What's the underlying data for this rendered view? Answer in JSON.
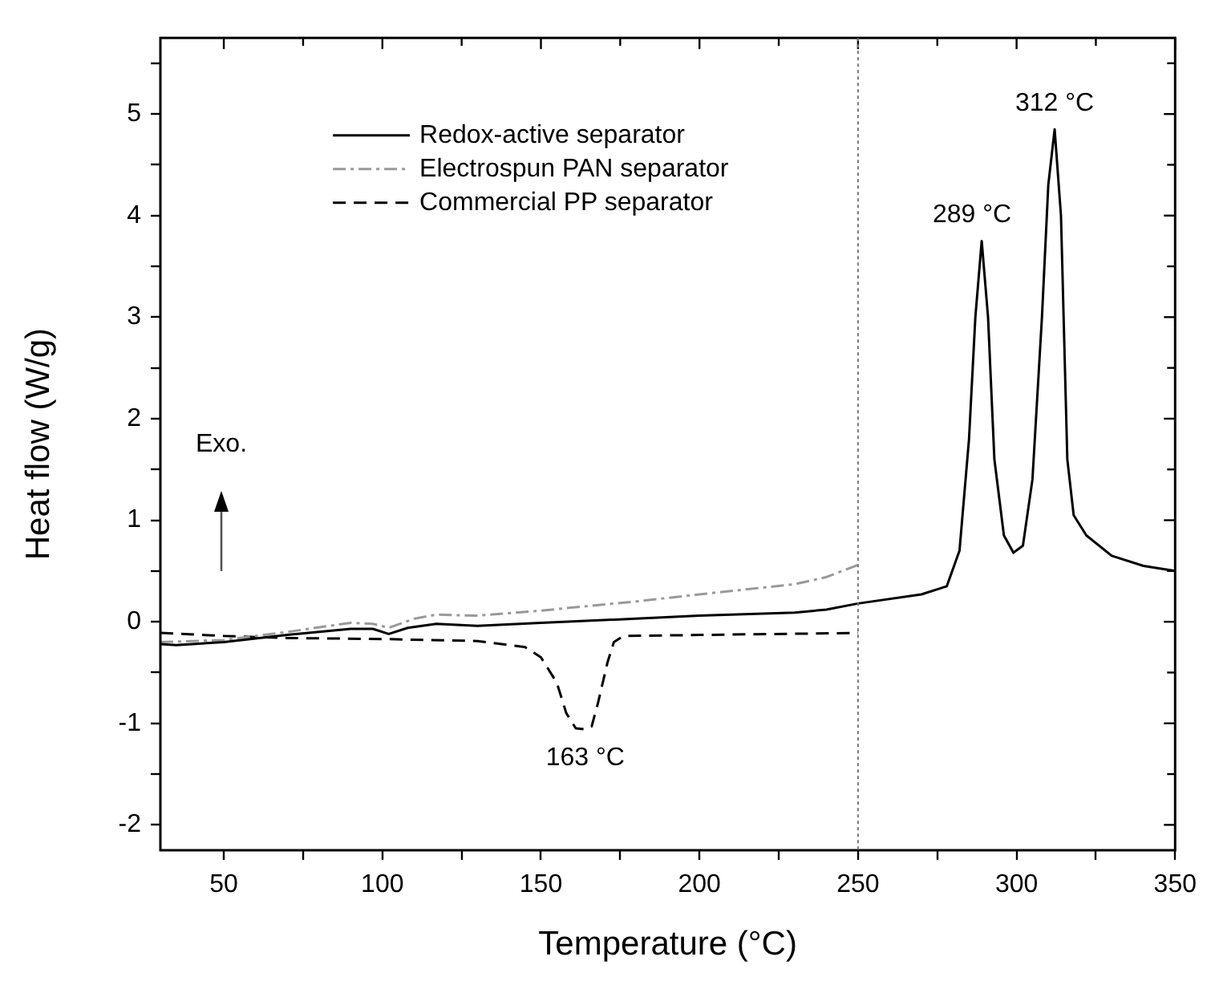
{
  "chart_data": {
    "type": "line",
    "xlabel": "Temperature (°C)",
    "ylabel": "Heat flow (W/g)",
    "xlim": [
      30,
      350
    ],
    "ylim": [
      -2.25,
      5.75
    ],
    "xticks": [
      50,
      {
        "value": 75,
        "label": null
      },
      100,
      {
        "value": 125,
        "label": null
      },
      150,
      {
        "value": 175,
        "label": null
      },
      200,
      {
        "value": 225,
        "label": null
      },
      250,
      {
        "value": 275,
        "label": null
      },
      300,
      {
        "value": 325,
        "label": null
      },
      350
    ],
    "yticks": [
      -2,
      {
        "value": -1.5,
        "label": null
      },
      -1,
      {
        "value": -0.5,
        "label": null
      },
      0,
      {
        "value": 0.5,
        "label": null
      },
      1,
      {
        "value": 1.5,
        "label": null
      },
      2,
      {
        "value": 2.5,
        "label": null
      },
      3,
      {
        "value": 3.5,
        "label": null
      },
      4,
      {
        "value": 4.5,
        "label": null
      },
      5,
      {
        "value": 5.5,
        "label": null
      }
    ],
    "grid": false,
    "legend": "top left",
    "marker": "none",
    "series": [
      {
        "name": "Redox-active separator",
        "color": "#000000",
        "line_style": "solid",
        "x": [
          30,
          35,
          50,
          70,
          90,
          97,
          102,
          108,
          117,
          130,
          150,
          180,
          200,
          230,
          240,
          250,
          270,
          278,
          282,
          285,
          287,
          289,
          291,
          293,
          296,
          299,
          302,
          305,
          308,
          310,
          312,
          314,
          316,
          318,
          322,
          330,
          340,
          350
        ],
        "values": [
          -0.22,
          -0.23,
          -0.2,
          -0.13,
          -0.07,
          -0.07,
          -0.12,
          -0.06,
          -0.02,
          -0.04,
          -0.01,
          0.03,
          0.06,
          0.09,
          0.12,
          0.18,
          0.27,
          0.35,
          0.7,
          1.8,
          3.0,
          3.75,
          3.0,
          1.6,
          0.85,
          0.68,
          0.75,
          1.4,
          3.0,
          4.3,
          4.85,
          4.0,
          1.6,
          1.05,
          0.85,
          0.65,
          0.55,
          0.5
        ]
      },
      {
        "name": "Electrospun PAN separator",
        "color": "#999999",
        "line_style": "dashdot",
        "x": [
          30,
          50,
          70,
          90,
          97,
          102,
          110,
          117,
          130,
          150,
          180,
          200,
          230,
          240,
          250
        ],
        "values": [
          -0.2,
          -0.18,
          -0.1,
          -0.01,
          -0.02,
          -0.06,
          0.03,
          0.07,
          0.06,
          0.11,
          0.2,
          0.27,
          0.37,
          0.44,
          0.56
        ]
      },
      {
        "name": "Commercial PP separator",
        "color": "#000000",
        "line_style": "dashed",
        "x": [
          30,
          50,
          70,
          100,
          130,
          145,
          150,
          155,
          158,
          161,
          164,
          166,
          168,
          171,
          173,
          176,
          200,
          250
        ],
        "values": [
          -0.11,
          -0.14,
          -0.16,
          -0.17,
          -0.19,
          -0.25,
          -0.35,
          -0.6,
          -0.9,
          -1.05,
          -1.06,
          -1.03,
          -0.8,
          -0.4,
          -0.2,
          -0.14,
          -0.13,
          -0.11
        ]
      }
    ],
    "ref_lines": [
      {
        "axis": "x",
        "value": 250,
        "color": "#777777",
        "line_style": "dotted"
      }
    ],
    "annotations": [
      {
        "text": "289 °C",
        "x": 289,
        "y": 3.75
      },
      {
        "text": "312 °C",
        "x": 312,
        "y": 4.85
      },
      {
        "text": "163 °C",
        "x": 164,
        "y": -1.06
      },
      "Exo."
    ]
  }
}
